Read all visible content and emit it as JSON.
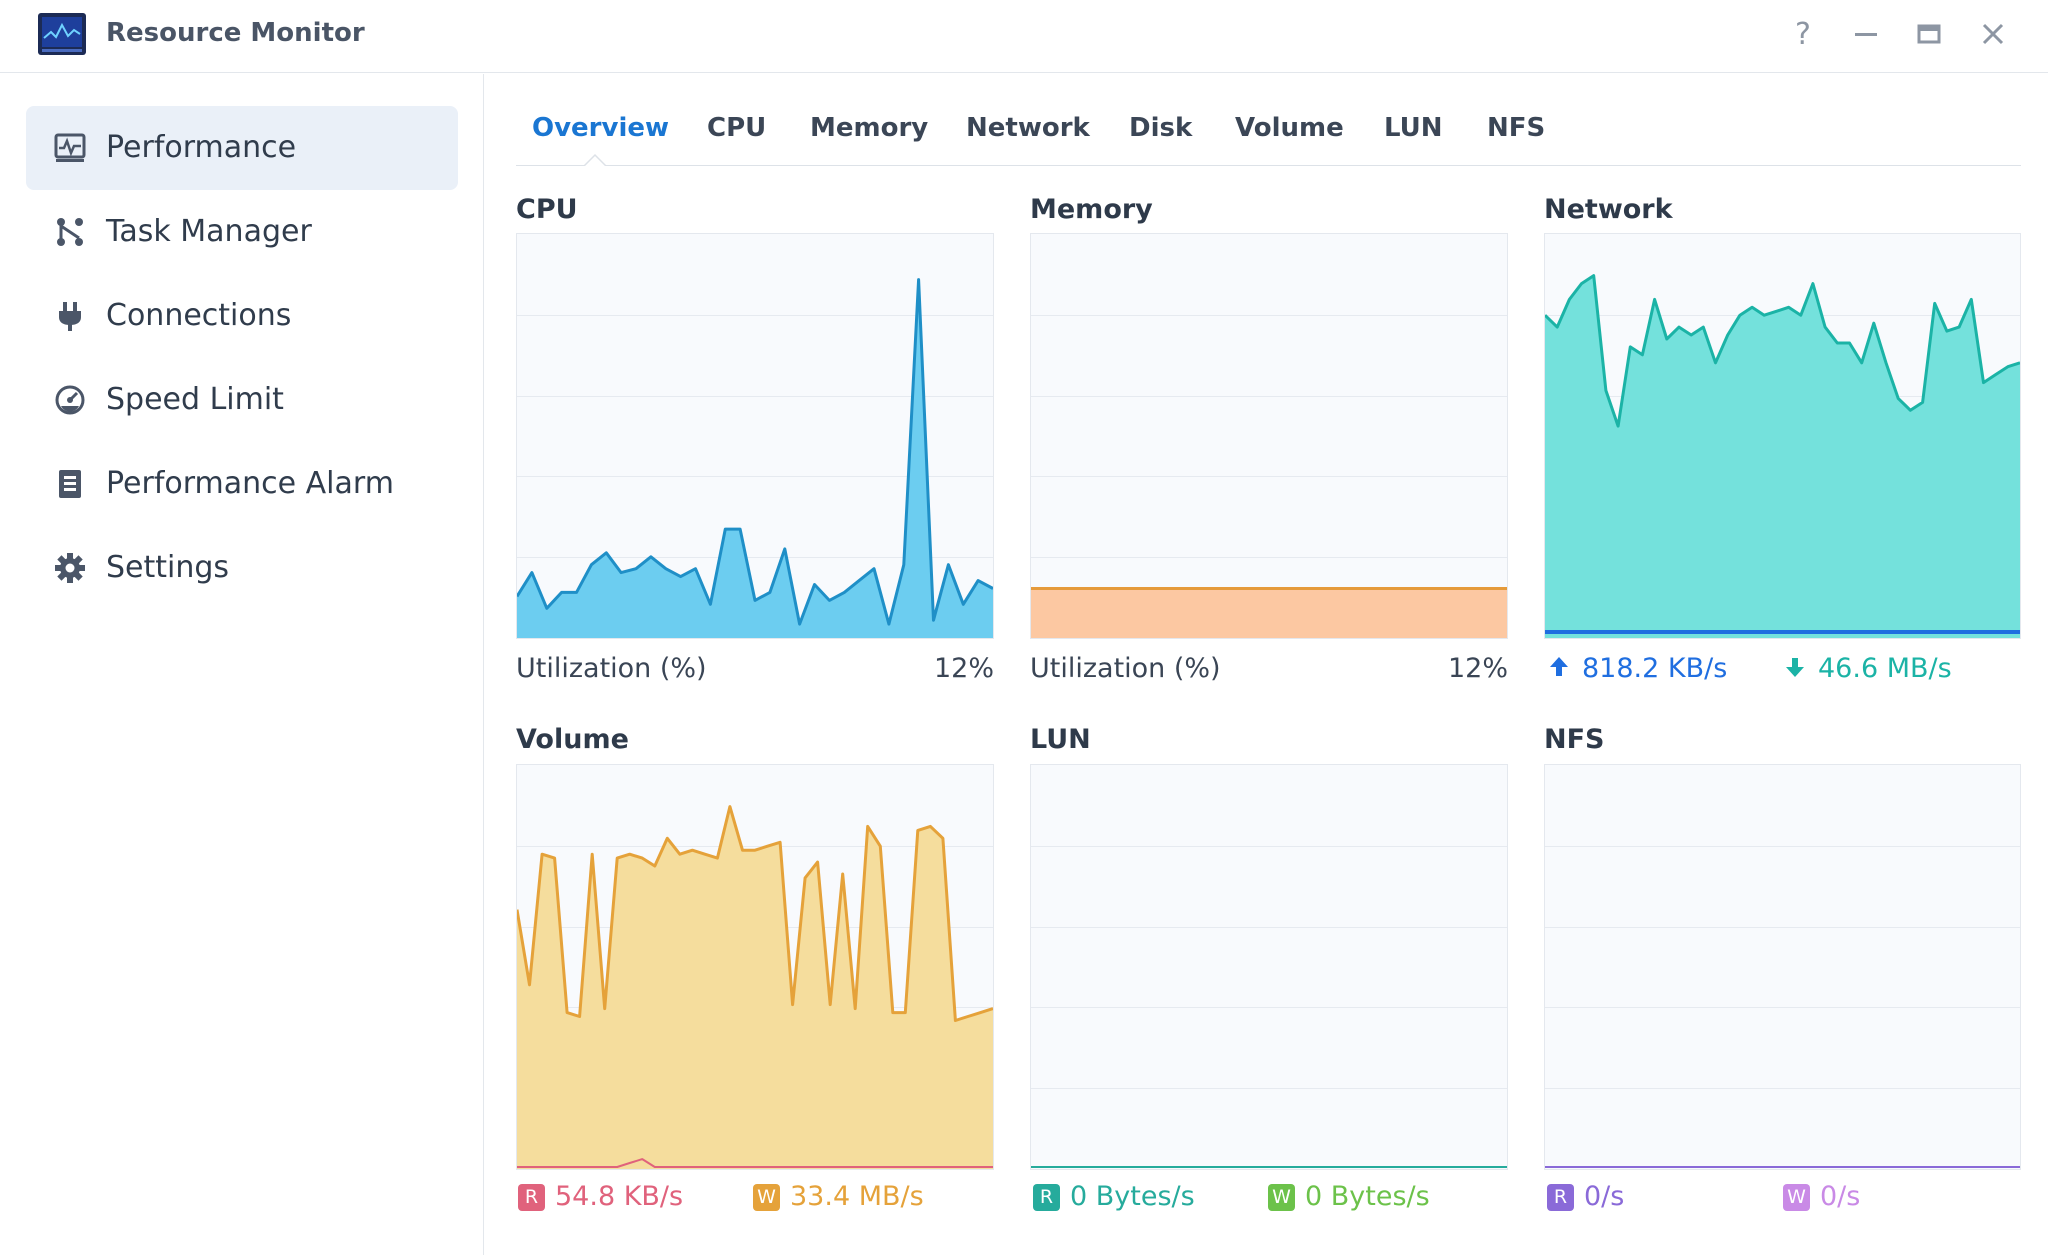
{
  "app": {
    "title": "Resource Monitor",
    "controls": {
      "help": "?",
      "minimize": "—",
      "maximize": "▭",
      "close": "✕"
    }
  },
  "sidebar": {
    "items": [
      {
        "label": "Performance",
        "icon": "performance-icon",
        "active": true
      },
      {
        "label": "Task Manager",
        "icon": "task-manager-icon",
        "active": false
      },
      {
        "label": "Connections",
        "icon": "plug-icon",
        "active": false
      },
      {
        "label": "Speed Limit",
        "icon": "gauge-icon",
        "active": false
      },
      {
        "label": "Performance Alarm",
        "icon": "alarm-list-icon",
        "active": false
      },
      {
        "label": "Settings",
        "icon": "gear-icon",
        "active": false
      }
    ]
  },
  "tabs": [
    {
      "label": "Overview",
      "active": true
    },
    {
      "label": "CPU",
      "active": false
    },
    {
      "label": "Memory",
      "active": false
    },
    {
      "label": "Network",
      "active": false
    },
    {
      "label": "Disk",
      "active": false
    },
    {
      "label": "Volume",
      "active": false
    },
    {
      "label": "LUN",
      "active": false
    },
    {
      "label": "NFS",
      "active": false
    }
  ],
  "panels": {
    "cpu": {
      "title": "CPU",
      "label": "Utilization  (%)",
      "value": "12%"
    },
    "memory": {
      "title": "Memory",
      "label": "Utilization  (%)",
      "value": "12%"
    },
    "network": {
      "title": "Network",
      "upload": "818.2 KB/s",
      "download": "46.6 MB/s"
    },
    "volume": {
      "title": "Volume",
      "read_badge": "R",
      "read": "54.8 KB/s",
      "write_badge": "W",
      "write": "33.4 MB/s"
    },
    "lun": {
      "title": "LUN",
      "read_badge": "R",
      "read": "0 Bytes/s",
      "write_badge": "W",
      "write": "0 Bytes/s"
    },
    "nfs": {
      "title": "NFS",
      "read_badge": "R",
      "read": "0/s",
      "write_badge": "W",
      "write": "0/s"
    }
  },
  "colors": {
    "accent": "#1a76d2",
    "cpu_line": "#1f8fc7",
    "cpu_fill": "#6ccdf0",
    "memory_line": "#e59a3a",
    "memory_fill": "#fcc8a2",
    "network_line": "#1bb3a6",
    "network_fill": "#74e1dc",
    "network_up": "#1f6ee0",
    "volume_line": "#e5a23a",
    "volume_fill": "#f5dd9d",
    "volume_read": "#e0627c",
    "lun_read": "#26ab9c",
    "lun_write": "#6cc24a",
    "nfs_read": "#8a6ad8",
    "nfs_write": "#c98ae6"
  },
  "chart_data": [
    {
      "type": "area",
      "name": "cpu",
      "ylim": [
        0,
        100
      ],
      "series": [
        {
          "values": [
            10,
            16,
            7,
            11,
            11,
            18,
            21,
            16,
            17,
            20,
            17,
            15,
            17,
            8,
            27,
            27,
            9,
            11,
            22,
            3,
            13,
            9,
            11,
            14,
            17,
            3,
            18,
            90,
            4,
            18,
            8,
            14,
            12
          ]
        }
      ]
    },
    {
      "type": "area",
      "name": "memory",
      "ylim": [
        0,
        100
      ],
      "series": [
        {
          "values": [
            12,
            12,
            12,
            12,
            12,
            12,
            12,
            12,
            12,
            12,
            12,
            12,
            12,
            12,
            12,
            12,
            12,
            12,
            12,
            12,
            12,
            12,
            12,
            12,
            12,
            12,
            12,
            12,
            12,
            12,
            12,
            12,
            12
          ]
        }
      ]
    },
    {
      "type": "area",
      "name": "network",
      "ylim": [
        0,
        100
      ],
      "series": [
        {
          "values": [
            81,
            78,
            85,
            89,
            91,
            62,
            53,
            73,
            71,
            85,
            75,
            78,
            76,
            78,
            69,
            76,
            81,
            83,
            81,
            82,
            83,
            81,
            89,
            78,
            74,
            74,
            69,
            79,
            69,
            60,
            57,
            59,
            84,
            77,
            78,
            85,
            64,
            66,
            68,
            69
          ]
        },
        {
          "values": [
            1,
            1,
            1,
            1,
            1,
            1,
            1,
            1,
            1,
            1,
            1,
            1,
            1,
            1,
            1,
            1,
            1,
            1,
            1,
            1,
            1,
            1,
            1,
            1,
            1,
            1,
            1,
            1,
            1,
            1,
            1,
            1,
            1,
            1,
            1,
            1,
            1,
            1,
            1,
            1
          ]
        }
      ]
    },
    {
      "type": "area",
      "name": "volume",
      "ylim": [
        0,
        100
      ],
      "series": [
        {
          "values": [
            65,
            46,
            79,
            78,
            39,
            38,
            79,
            40,
            78,
            79,
            78,
            76,
            83,
            79,
            80,
            79,
            78,
            91,
            80,
            80,
            81,
            82,
            41,
            73,
            77,
            41,
            74,
            40,
            86,
            81,
            39,
            39,
            85,
            86,
            83,
            37,
            38,
            39,
            40
          ]
        },
        {
          "values": [
            0,
            0,
            0,
            0,
            0,
            0,
            0,
            0,
            0,
            1,
            2,
            0,
            0,
            0,
            0,
            0,
            0,
            0,
            0,
            0,
            0,
            0,
            0,
            0,
            0,
            0,
            0,
            0,
            0,
            0,
            0,
            0,
            0,
            0,
            0,
            0,
            0,
            0,
            0
          ]
        }
      ]
    },
    {
      "type": "area",
      "name": "lun",
      "ylim": [
        0,
        100
      ],
      "series": [
        {
          "values": [
            0,
            0,
            0,
            0,
            0,
            0,
            0,
            0,
            0,
            0,
            0,
            0,
            0,
            0,
            0,
            0,
            0,
            0,
            0,
            0,
            0,
            0,
            0,
            0,
            0,
            0,
            0,
            0,
            0,
            0,
            0,
            0,
            0,
            0,
            0,
            0,
            0,
            0,
            0,
            0
          ]
        }
      ]
    },
    {
      "type": "area",
      "name": "nfs",
      "ylim": [
        0,
        100
      ],
      "series": [
        {
          "values": [
            0,
            0,
            0,
            0,
            0,
            0,
            0,
            0,
            0,
            0,
            0,
            0,
            0,
            0,
            0,
            0,
            0,
            0,
            0,
            0,
            0,
            0,
            0,
            0,
            0,
            0,
            0,
            0,
            0,
            0,
            0,
            0,
            0,
            0,
            0,
            0,
            0,
            0,
            0,
            0
          ]
        }
      ]
    }
  ]
}
